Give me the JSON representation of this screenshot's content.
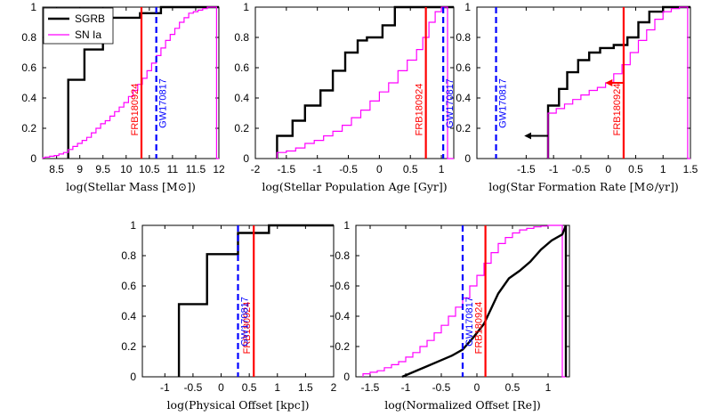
{
  "colors": {
    "sgrb": "#000000",
    "sn": "#ff00ff",
    "frb": "#ff0000",
    "gw": "#0000ff"
  },
  "legend": {
    "sgrb": "SGRB",
    "sn": "SN Ia"
  },
  "chart_data": [
    {
      "type": "line",
      "title": "",
      "xlabel": "log(Stellar Mass [M⊙])",
      "ylabel": "",
      "xlim": [
        8.2,
        12
      ],
      "ylim": [
        0,
        1
      ],
      "xticks": [
        8.5,
        9,
        9.5,
        10,
        10.5,
        11,
        11.5,
        12
      ],
      "xtick_labels": [
        "8.5",
        "9",
        "9.5",
        "10",
        "10.5",
        "11",
        "11.5",
        "12"
      ],
      "yticks": [
        0,
        0.2,
        0.4,
        0.6,
        0.8,
        1
      ],
      "ytick_labels": [
        "0",
        "0.2",
        "0.4",
        "0.6",
        "0.8",
        "1"
      ],
      "legend_position": "top-left",
      "series": [
        {
          "name": "SGRB",
          "step": true,
          "x": [
            8.75,
            9.1,
            9.5,
            9.8,
            10.3,
            10.75,
            11.0,
            11.25
          ],
          "y": [
            0.41,
            0.52,
            0.72,
            0.93,
            0.93,
            0.96,
            1.0,
            1.0
          ],
          "xstart": 8.75,
          "xend": 12
        },
        {
          "name": "SN Ia",
          "step": true,
          "x": [
            8.25,
            8.35,
            8.45,
            8.55,
            8.65,
            8.75,
            8.85,
            8.95,
            9.05,
            9.15,
            9.25,
            9.35,
            9.45,
            9.55,
            9.65,
            9.75,
            9.85,
            9.95,
            10.05,
            10.15,
            10.25,
            10.35,
            10.45,
            10.55,
            10.65,
            10.75,
            10.85,
            10.95,
            11.05,
            11.15,
            11.25,
            11.35,
            11.45,
            11.55,
            11.65,
            11.75,
            11.85,
            11.95,
            12.0
          ],
          "y": [
            0.005,
            0.01,
            0.015,
            0.02,
            0.03,
            0.04,
            0.06,
            0.08,
            0.1,
            0.12,
            0.14,
            0.17,
            0.2,
            0.23,
            0.25,
            0.28,
            0.31,
            0.34,
            0.37,
            0.41,
            0.45,
            0.49,
            0.53,
            0.58,
            0.63,
            0.68,
            0.73,
            0.78,
            0.82,
            0.86,
            0.9,
            0.93,
            0.96,
            0.97,
            0.98,
            0.99,
            1.0,
            1.0,
            0.0
          ],
          "xstart": 8.2,
          "xend": 12
        },
        {
          "name": "FRB180924",
          "vline": true,
          "x": 10.33,
          "label": "FRB180924"
        },
        {
          "name": "GW170817",
          "vline": true,
          "dashed": true,
          "x": 10.65,
          "label": "GW170817"
        }
      ]
    },
    {
      "type": "line",
      "title": "",
      "xlabel": "log(Stellar Population Age [Gyr])",
      "ylabel": "",
      "xlim": [
        -2,
        1.2
      ],
      "ylim": [
        0,
        1
      ],
      "xticks": [
        -2,
        -1.5,
        -1,
        -0.5,
        0,
        0.5,
        1
      ],
      "xtick_labels": [
        "-2",
        "-1.5",
        "-1",
        "-0.5",
        "0",
        "0.5",
        "1"
      ],
      "yticks": [
        0,
        0.2,
        0.4,
        0.6,
        0.8,
        1
      ],
      "ytick_labels": [
        "0",
        "0.2",
        "0.4",
        "0.6",
        "0.8",
        "1"
      ],
      "series": [
        {
          "name": "SGRB",
          "step": true,
          "x": [
            -1.65,
            -1.4,
            -1.2,
            -0.95,
            -0.75,
            -0.55,
            -0.35,
            -0.2,
            0.05,
            0.25,
            0.55,
            0.75,
            1.2
          ],
          "y": [
            0.08,
            0.15,
            0.25,
            0.35,
            0.45,
            0.58,
            0.7,
            0.78,
            0.8,
            0.88,
            1.0,
            1.0,
            1.0
          ],
          "xstart": -1.65,
          "xend": 1.2
        },
        {
          "name": "SN Ia",
          "step": true,
          "x": [
            -1.65,
            -1.5,
            -1.35,
            -1.2,
            -1.05,
            -0.9,
            -0.75,
            -0.6,
            -0.45,
            -0.3,
            -0.15,
            0.0,
            0.15,
            0.3,
            0.45,
            0.6,
            0.7,
            0.8,
            0.9,
            1.0,
            1.1,
            1.2
          ],
          "y": [
            0.02,
            0.04,
            0.05,
            0.07,
            0.1,
            0.12,
            0.15,
            0.18,
            0.22,
            0.27,
            0.32,
            0.38,
            0.44,
            0.5,
            0.58,
            0.65,
            0.72,
            0.8,
            0.9,
            0.97,
            1.0,
            0.0
          ],
          "xstart": -1.65,
          "xend": 1.2
        },
        {
          "name": "FRB180924",
          "vline": true,
          "x": 0.75,
          "label": "FRB180924"
        },
        {
          "name": "GW170817",
          "vline": true,
          "dashed": true,
          "x": 1.03,
          "label": "GW170817"
        }
      ]
    },
    {
      "type": "line",
      "title": "",
      "xlabel": "log(Star Formation Rate [M⊙/yr])",
      "ylabel": "",
      "xlim": [
        -2.4,
        1.5
      ],
      "ylim": [
        0,
        1
      ],
      "xticks": [
        -1.5,
        -1,
        -0.5,
        0,
        0.5,
        1,
        1.5
      ],
      "xtick_labels": [
        "-1.5",
        "-1",
        "-0.5",
        "0",
        "0.5",
        "1",
        "1.5"
      ],
      "yticks": [
        0,
        0.2,
        0.4,
        0.6,
        0.8,
        1
      ],
      "ytick_labels": [
        "0",
        "0.2",
        "0.4",
        "0.6",
        "0.8",
        "1"
      ],
      "series": [
        {
          "name": "SGRB",
          "step": true,
          "x": [
            -1.1,
            -0.9,
            -0.75,
            -0.55,
            -0.35,
            -0.15,
            0.1,
            0.35,
            0.55,
            0.75,
            1.0,
            1.2
          ],
          "y": [
            0.27,
            0.35,
            0.46,
            0.57,
            0.65,
            0.7,
            0.73,
            0.75,
            0.8,
            0.9,
            0.97,
            1.0
          ],
          "xstart": -1.1,
          "xend": 1.5
        },
        {
          "name": "SN Ia",
          "step": true,
          "x": [
            -1.1,
            -0.95,
            -0.8,
            -0.65,
            -0.5,
            -0.35,
            -0.2,
            -0.05,
            0.1,
            0.25,
            0.4,
            0.55,
            0.7,
            0.85,
            1.0,
            1.15,
            1.3,
            1.45,
            1.5
          ],
          "y": [
            0.28,
            0.3,
            0.33,
            0.36,
            0.39,
            0.42,
            0.45,
            0.47,
            0.5,
            0.56,
            0.62,
            0.7,
            0.78,
            0.85,
            0.92,
            0.97,
            0.99,
            1.0,
            0.0
          ],
          "xstart": -1.1,
          "xend": 1.5
        },
        {
          "name": "FRB180924",
          "vline": true,
          "x": 0.28,
          "label": "FRB180924"
        },
        {
          "name": "GW170817",
          "vline": true,
          "dashed": true,
          "x": -2.05,
          "label": "GW170817"
        }
      ],
      "arrows": [
        {
          "color": "sgrb",
          "from": [
            -1.1,
            0.15
          ],
          "to": [
            -1.6,
            0.15
          ]
        },
        {
          "color": "frb",
          "from": [
            0.28,
            0.5
          ],
          "to": [
            -0.12,
            0.5
          ]
        }
      ]
    },
    {
      "type": "line",
      "title": "",
      "xlabel": "log(Physical Offset [kpc])",
      "ylabel": "",
      "xlim": [
        -1.4,
        2
      ],
      "ylim": [
        0,
        1
      ],
      "xticks": [
        -1,
        -0.5,
        0,
        0.5,
        1,
        1.5,
        2
      ],
      "xtick_labels": [
        "-1",
        "-0.5",
        "0",
        "0.5",
        "1",
        "1.5",
        "2"
      ],
      "yticks": [
        0,
        0.2,
        0.4,
        0.6,
        0.8,
        1
      ],
      "ytick_labels": [
        "0",
        "0.2",
        "0.4",
        "0.6",
        "0.8",
        "1"
      ],
      "series": [
        {
          "name": "SGRB",
          "step": true,
          "x": [
            -0.75,
            -0.25,
            0.3,
            0.85,
            1.25,
            2.0
          ],
          "y": [
            0.19,
            0.48,
            0.81,
            0.95,
            1.0,
            1.0
          ],
          "xstart": -0.75,
          "xend": 2.0
        },
        {
          "name": "FRB180924",
          "vline": true,
          "x": 0.58,
          "label": "FRB180924"
        },
        {
          "name": "GW170817",
          "vline": true,
          "dashed": true,
          "x": 0.3,
          "label": "GW170817"
        }
      ]
    },
    {
      "type": "line",
      "title": "",
      "xlabel": "log(Normalized Offset [Re])",
      "ylabel": "",
      "xlim": [
        -1.7,
        1.3
      ],
      "ylim": [
        0,
        1
      ],
      "xticks": [
        -1.5,
        -1,
        -0.5,
        0,
        0.5,
        1
      ],
      "xtick_labels": [
        "-1.5",
        "-1",
        "-0.5",
        "0",
        "0.5",
        "1"
      ],
      "yticks": [
        0,
        0.2,
        0.4,
        0.6,
        0.8,
        1
      ],
      "ytick_labels": [
        "0",
        "0.2",
        "0.4",
        "0.6",
        "0.8",
        "1"
      ],
      "series": [
        {
          "name": "SN Ia",
          "step": true,
          "x": [
            -1.6,
            -1.5,
            -1.4,
            -1.3,
            -1.2,
            -1.1,
            -1.0,
            -0.9,
            -0.8,
            -0.7,
            -0.6,
            -0.5,
            -0.4,
            -0.3,
            -0.2,
            -0.1,
            0.0,
            0.1,
            0.2,
            0.3,
            0.4,
            0.5,
            0.6,
            0.7,
            0.8,
            0.9,
            1.0,
            1.1,
            1.2,
            1.25
          ],
          "y": [
            0.01,
            0.02,
            0.03,
            0.04,
            0.06,
            0.08,
            0.1,
            0.13,
            0.16,
            0.2,
            0.24,
            0.29,
            0.34,
            0.4,
            0.46,
            0.52,
            0.6,
            0.67,
            0.75,
            0.82,
            0.88,
            0.92,
            0.95,
            0.97,
            0.98,
            0.99,
            0.995,
            1.0,
            1.0,
            0.0
          ],
          "xstart": -1.6,
          "xend": 1.25
        },
        {
          "name": "SGRB",
          "smooth": true,
          "x": [
            -1.05,
            -0.9,
            -0.7,
            -0.5,
            -0.35,
            -0.2,
            -0.05,
            0.1,
            0.2,
            0.3,
            0.45,
            0.6,
            0.75,
            0.9,
            1.05,
            1.2,
            1.25
          ],
          "y": [
            0.0,
            0.03,
            0.07,
            0.11,
            0.14,
            0.18,
            0.26,
            0.35,
            0.45,
            0.55,
            0.65,
            0.7,
            0.76,
            0.84,
            0.9,
            0.94,
            1.0
          ]
        },
        {
          "name": "FRB180924",
          "vline": true,
          "x": 0.12,
          "label": "FRB180924"
        },
        {
          "name": "GW170817",
          "vline": true,
          "dashed": true,
          "x": -0.2,
          "label": "GW170817"
        }
      ]
    }
  ]
}
